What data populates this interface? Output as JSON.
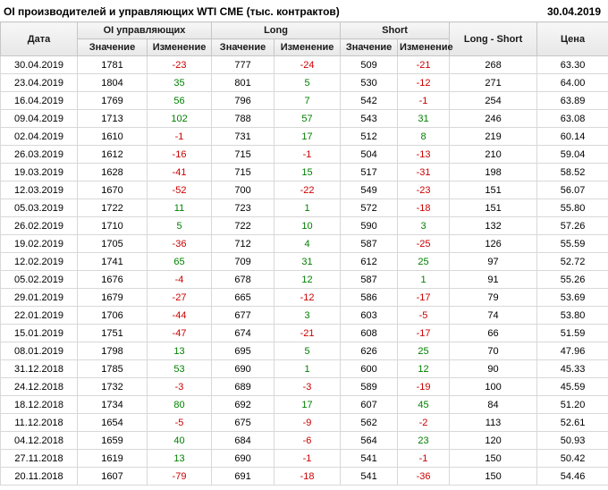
{
  "header": {
    "title": "OI производителей и управляющих WTI CME (тыс. контрактов)",
    "date": "30.04.2019"
  },
  "table": {
    "headers": {
      "date": "Дата",
      "group_oi": "OI управляющих",
      "group_long": "Long",
      "group_short": "Short",
      "long_short": "Long - Short",
      "price": "Цена",
      "value": "Значение",
      "change": "Изменение"
    }
  },
  "colors": {
    "positive": "#008000",
    "negative": "#cc0000",
    "header_bg": "#efefef"
  },
  "chart_data": {
    "type": "table",
    "title": "OI производителей и управляющих WTI CME (тыс. контрактов)",
    "columns": [
      "Дата",
      "OI управляющих Значение",
      "OI управляющих Изменение",
      "Long Значение",
      "Long Изменение",
      "Short Значение",
      "Short Изменение",
      "Long - Short",
      "Цена"
    ],
    "change_column_indices": [
      2,
      4,
      6
    ],
    "rows": [
      [
        "30.04.2019",
        "1781",
        "-23",
        "777",
        "-24",
        "509",
        "-21",
        "268",
        "63.30"
      ],
      [
        "23.04.2019",
        "1804",
        "35",
        "801",
        "5",
        "530",
        "-12",
        "271",
        "64.00"
      ],
      [
        "16.04.2019",
        "1769",
        "56",
        "796",
        "7",
        "542",
        "-1",
        "254",
        "63.89"
      ],
      [
        "09.04.2019",
        "1713",
        "102",
        "788",
        "57",
        "543",
        "31",
        "246",
        "63.08"
      ],
      [
        "02.04.2019",
        "1610",
        "-1",
        "731",
        "17",
        "512",
        "8",
        "219",
        "60.14"
      ],
      [
        "26.03.2019",
        "1612",
        "-16",
        "715",
        "-1",
        "504",
        "-13",
        "210",
        "59.04"
      ],
      [
        "19.03.2019",
        "1628",
        "-41",
        "715",
        "15",
        "517",
        "-31",
        "198",
        "58.52"
      ],
      [
        "12.03.2019",
        "1670",
        "-52",
        "700",
        "-22",
        "549",
        "-23",
        "151",
        "56.07"
      ],
      [
        "05.03.2019",
        "1722",
        "11",
        "723",
        "1",
        "572",
        "-18",
        "151",
        "55.80"
      ],
      [
        "26.02.2019",
        "1710",
        "5",
        "722",
        "10",
        "590",
        "3",
        "132",
        "57.26"
      ],
      [
        "19.02.2019",
        "1705",
        "-36",
        "712",
        "4",
        "587",
        "-25",
        "126",
        "55.59"
      ],
      [
        "12.02.2019",
        "1741",
        "65",
        "709",
        "31",
        "612",
        "25",
        "97",
        "52.72"
      ],
      [
        "05.02.2019",
        "1676",
        "-4",
        "678",
        "12",
        "587",
        "1",
        "91",
        "55.26"
      ],
      [
        "29.01.2019",
        "1679",
        "-27",
        "665",
        "-12",
        "586",
        "-17",
        "79",
        "53.69"
      ],
      [
        "22.01.2019",
        "1706",
        "-44",
        "677",
        "3",
        "603",
        "-5",
        "74",
        "53.80"
      ],
      [
        "15.01.2019",
        "1751",
        "-47",
        "674",
        "-21",
        "608",
        "-17",
        "66",
        "51.59"
      ],
      [
        "08.01.2019",
        "1798",
        "13",
        "695",
        "5",
        "626",
        "25",
        "70",
        "47.96"
      ],
      [
        "31.12.2018",
        "1785",
        "53",
        "690",
        "1",
        "600",
        "12",
        "90",
        "45.33"
      ],
      [
        "24.12.2018",
        "1732",
        "-3",
        "689",
        "-3",
        "589",
        "-19",
        "100",
        "45.59"
      ],
      [
        "18.12.2018",
        "1734",
        "80",
        "692",
        "17",
        "607",
        "45",
        "84",
        "51.20"
      ],
      [
        "11.12.2018",
        "1654",
        "-5",
        "675",
        "-9",
        "562",
        "-2",
        "113",
        "52.61"
      ],
      [
        "04.12.2018",
        "1659",
        "40",
        "684",
        "-6",
        "564",
        "23",
        "120",
        "50.93"
      ],
      [
        "27.11.2018",
        "1619",
        "13",
        "690",
        "-1",
        "541",
        "-1",
        "150",
        "50.42"
      ],
      [
        "20.11.2018",
        "1607",
        "-79",
        "691",
        "-18",
        "541",
        "-36",
        "150",
        "54.46"
      ]
    ]
  }
}
